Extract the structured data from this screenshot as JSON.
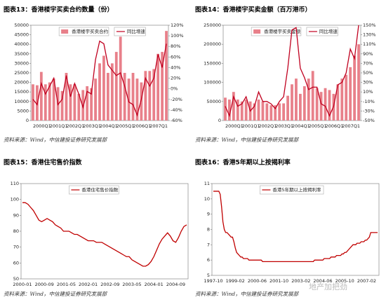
{
  "chart_data": [
    {
      "type": "combo",
      "title": "图表13：香港楼宇买卖合约数量（份）",
      "source": "资料来源：Wind，中信建投证券研究发展部",
      "categories": [
        "2000Q1",
        null,
        null,
        null,
        "2001Q1",
        null,
        null,
        null,
        "2002Q1",
        null,
        null,
        null,
        "2003Q1",
        null,
        null,
        null,
        "2004Q1",
        null,
        null,
        null,
        "2005Q1",
        null,
        null,
        null,
        "2006Q1",
        null,
        null,
        null,
        "2007Q1",
        null,
        null,
        null,
        null
      ],
      "series": [
        {
          "name": "香港楼宇买卖合约",
          "type": "bar",
          "color": "#e8808a",
          "values": [
            19000,
            18500,
            25500,
            19000,
            20000,
            22000,
            17500,
            15500,
            25000,
            19000,
            19000,
            14000,
            16000,
            18000,
            17000,
            22000,
            30000,
            34000,
            25000,
            30000,
            36000,
            44000,
            25000,
            22000,
            25000,
            22000,
            20000,
            26000,
            26000,
            27000,
            35000,
            36000,
            47000
          ]
        },
        {
          "name": "同比增速",
          "type": "line",
          "axis": "y2",
          "color": "#c0001f",
          "values": [
            -20,
            -30,
            10,
            -10,
            5,
            20,
            -30,
            -20,
            25,
            -15,
            10,
            -10,
            -35,
            -5,
            -10,
            55,
            90,
            85,
            45,
            35,
            25,
            30,
            5,
            -25,
            -30,
            -50,
            -20,
            20,
            5,
            20,
            65,
            40,
            85
          ]
        }
      ],
      "ylim": [
        0,
        50000
      ],
      "yticks": [
        0,
        5000,
        10000,
        15000,
        20000,
        25000,
        30000,
        35000,
        40000,
        45000,
        50000
      ],
      "y2lim": [
        -60,
        120
      ],
      "y2ticks": [
        {
          "value": -60,
          "label": "-60%"
        },
        {
          "value": -40,
          "label": "-40%"
        },
        {
          "value": -20,
          "label": "-20%"
        },
        {
          "value": 0,
          "label": "0%"
        },
        {
          "value": 20,
          "label": "20%"
        },
        {
          "value": 40,
          "label": "40%"
        },
        {
          "value": 60,
          "label": "60%"
        },
        {
          "value": 80,
          "label": "80%"
        },
        {
          "value": 100,
          "label": "100%"
        },
        {
          "value": 120,
          "label": "120%"
        }
      ]
    },
    {
      "type": "combo",
      "title": "图表14：香港楼宇买卖金额（百万港币）",
      "source": "资料来源：Wind，中信建投证券研究发展部",
      "categories": [
        "2000Q1",
        null,
        null,
        null,
        "2001Q1",
        null,
        null,
        null,
        "2002Q1",
        null,
        null,
        null,
        "2003Q1",
        null,
        null,
        null,
        "2004Q1",
        null,
        null,
        null,
        "2005Q1",
        null,
        null,
        null,
        "2006Q1",
        null,
        null,
        null,
        "2007Q1",
        null,
        null,
        null,
        null
      ],
      "series": [
        {
          "name": "香港楼宇买卖金额",
          "type": "bar",
          "color": "#e8808a",
          "values": [
            60000,
            55000,
            75000,
            55000,
            50000,
            55000,
            50000,
            45000,
            55000,
            50000,
            45000,
            40000,
            40000,
            45000,
            45000,
            65000,
            95000,
            110000,
            70000,
            90000,
            110000,
            130000,
            85000,
            75000,
            85000,
            80000,
            70000,
            95000,
            110000,
            120000,
            140000,
            170000,
            200000
          ]
        },
        {
          "name": "同比增速",
          "type": "line",
          "axis": "y2",
          "color": "#c0001f",
          "values": [
            -20,
            -40,
            0,
            -20,
            -15,
            0,
            -30,
            -20,
            10,
            -10,
            -10,
            -15,
            -25,
            -10,
            0,
            60,
            140,
            145,
            60,
            40,
            15,
            20,
            20,
            -15,
            -20,
            -40,
            -20,
            25,
            30,
            50,
            100,
            80,
            150
          ]
        }
      ],
      "ylim": [
        0,
        250000
      ],
      "yticks": [
        0,
        50000,
        100000,
        150000,
        200000,
        250000
      ],
      "y2lim": [
        -50,
        150
      ],
      "y2ticks": [
        {
          "value": -50,
          "label": "-50%"
        },
        {
          "value": -30,
          "label": "-30%"
        },
        {
          "value": -10,
          "label": "-10%"
        },
        {
          "value": 10,
          "label": "10%"
        },
        {
          "value": 30,
          "label": "30%"
        },
        {
          "value": 50,
          "label": "50%"
        },
        {
          "value": 70,
          "label": "70%"
        },
        {
          "value": 90,
          "label": "90%"
        },
        {
          "value": 110,
          "label": "110%"
        },
        {
          "value": 130,
          "label": "130%"
        },
        {
          "value": 150,
          "label": "150%"
        }
      ]
    },
    {
      "type": "line",
      "title": "图表15：香港住宅售价指数",
      "source": "资料来源：Wind，中信建投证券研究发展部",
      "categories": [
        "2000-01",
        null,
        null,
        null,
        null,
        null,
        null,
        null,
        "2000-09",
        null,
        null,
        null,
        null,
        null,
        null,
        null,
        "2001-05",
        null,
        null,
        null,
        null,
        null,
        null,
        null,
        "2002-01",
        null,
        null,
        null,
        null,
        null,
        null,
        null,
        "2002-09",
        null,
        null,
        null,
        null,
        null,
        null,
        null,
        "2003-05",
        null,
        null,
        null,
        null,
        null,
        null,
        null,
        "2004-01",
        null,
        null,
        null,
        null,
        null,
        null,
        null,
        "2004-09",
        null,
        null,
        null,
        null
      ],
      "series": [
        {
          "name": "香港住宅售价指数",
          "color": "#c00000",
          "values": [
            98,
            98,
            97,
            95,
            93,
            90,
            87,
            86,
            87,
            88,
            87,
            86,
            84,
            83,
            82,
            80,
            80,
            80,
            79,
            78,
            78,
            77,
            76,
            75,
            74,
            74,
            74,
            73,
            73,
            73,
            72,
            71,
            70,
            69,
            68,
            67,
            66,
            65,
            64,
            64,
            62,
            61,
            60,
            59,
            58,
            58,
            59,
            61,
            64,
            68,
            72,
            75,
            77,
            79,
            77,
            74,
            73,
            76,
            80,
            83,
            84
          ]
        }
      ],
      "ylim": [
        50,
        110
      ],
      "yticks": [
        50,
        60,
        70,
        80,
        90,
        100,
        110
      ]
    },
    {
      "type": "line",
      "title": "图表16：香港5年期以上按揭利率",
      "source": "资料来源：Wind，中信建投证券研究发展部",
      "categories": [
        "1997-10",
        null,
        null,
        null,
        null,
        null,
        null,
        null,
        null,
        null,
        null,
        null,
        null,
        null,
        null,
        null,
        "1999-02",
        null,
        null,
        null,
        null,
        null,
        null,
        null,
        null,
        null,
        null,
        null,
        null,
        null,
        null,
        null,
        "2000-06",
        null,
        null,
        null,
        null,
        null,
        null,
        null,
        null,
        null,
        null,
        null,
        null,
        null,
        null,
        null,
        "2001-10",
        null,
        null,
        null,
        null,
        null,
        null,
        null,
        null,
        null,
        null,
        null,
        null,
        null,
        null,
        null,
        "2003-02",
        null,
        null,
        null,
        null,
        null,
        null,
        null,
        null,
        null,
        null,
        null,
        null,
        null,
        null,
        null,
        "2004-06",
        null,
        null,
        null,
        null,
        null,
        null,
        null,
        null,
        null,
        null,
        null,
        null,
        null,
        null,
        null,
        "2005-10",
        null,
        null,
        null,
        null,
        null,
        null,
        null,
        null,
        null,
        null,
        null,
        null,
        null,
        null,
        null,
        "2007-02",
        null,
        null,
        null,
        null,
        null,
        null,
        null,
        null
      ],
      "series": [
        {
          "name": "香港5年期以上按揭利率",
          "color": "#c00000",
          "values": [
            10.5,
            10.5,
            10.5,
            10.5,
            10.5,
            10.3,
            9.5,
            8.5,
            8.0,
            7.8,
            7.8,
            7.7,
            7.6,
            7.5,
            7.5,
            7.2,
            6.8,
            6.5,
            6.4,
            6.3,
            6.2,
            6.2,
            6.1,
            6.1,
            6.1,
            6.1,
            6.0,
            6.0,
            6.0,
            6.0,
            6.0,
            6.0,
            6.0,
            6.0,
            6.0,
            6.0,
            5.9,
            5.9,
            5.9,
            5.9,
            5.9,
            5.9,
            5.9,
            5.9,
            5.9,
            5.9,
            5.9,
            5.9,
            5.9,
            5.9,
            5.9,
            5.9,
            5.9,
            5.9,
            5.9,
            5.9,
            5.9,
            5.9,
            5.9,
            5.9,
            5.9,
            5.9,
            5.9,
            5.9,
            5.9,
            5.9,
            5.9,
            5.9,
            5.9,
            5.9,
            5.9,
            5.9,
            5.9,
            5.9,
            6.0,
            6.0,
            6.0,
            6.0,
            6.0,
            6.0,
            6.0,
            6.1,
            6.1,
            6.1,
            6.1,
            6.1,
            6.2,
            6.2,
            6.2,
            6.2,
            6.3,
            6.3,
            6.3,
            6.3,
            6.4,
            6.4,
            6.5,
            6.5,
            6.6,
            6.7,
            6.8,
            6.9,
            7.0,
            7.0,
            7.0,
            7.1,
            7.1,
            7.1,
            7.2,
            7.2,
            7.2,
            7.3,
            7.3,
            7.4,
            7.5,
            7.8,
            7.8,
            7.8,
            7.8,
            7.8,
            7.8
          ]
        }
      ],
      "ylim": [
        5,
        11
      ],
      "yticks": [
        5,
        6,
        7,
        8,
        9,
        10,
        11
      ]
    }
  ],
  "watermark": "地产加把劲"
}
